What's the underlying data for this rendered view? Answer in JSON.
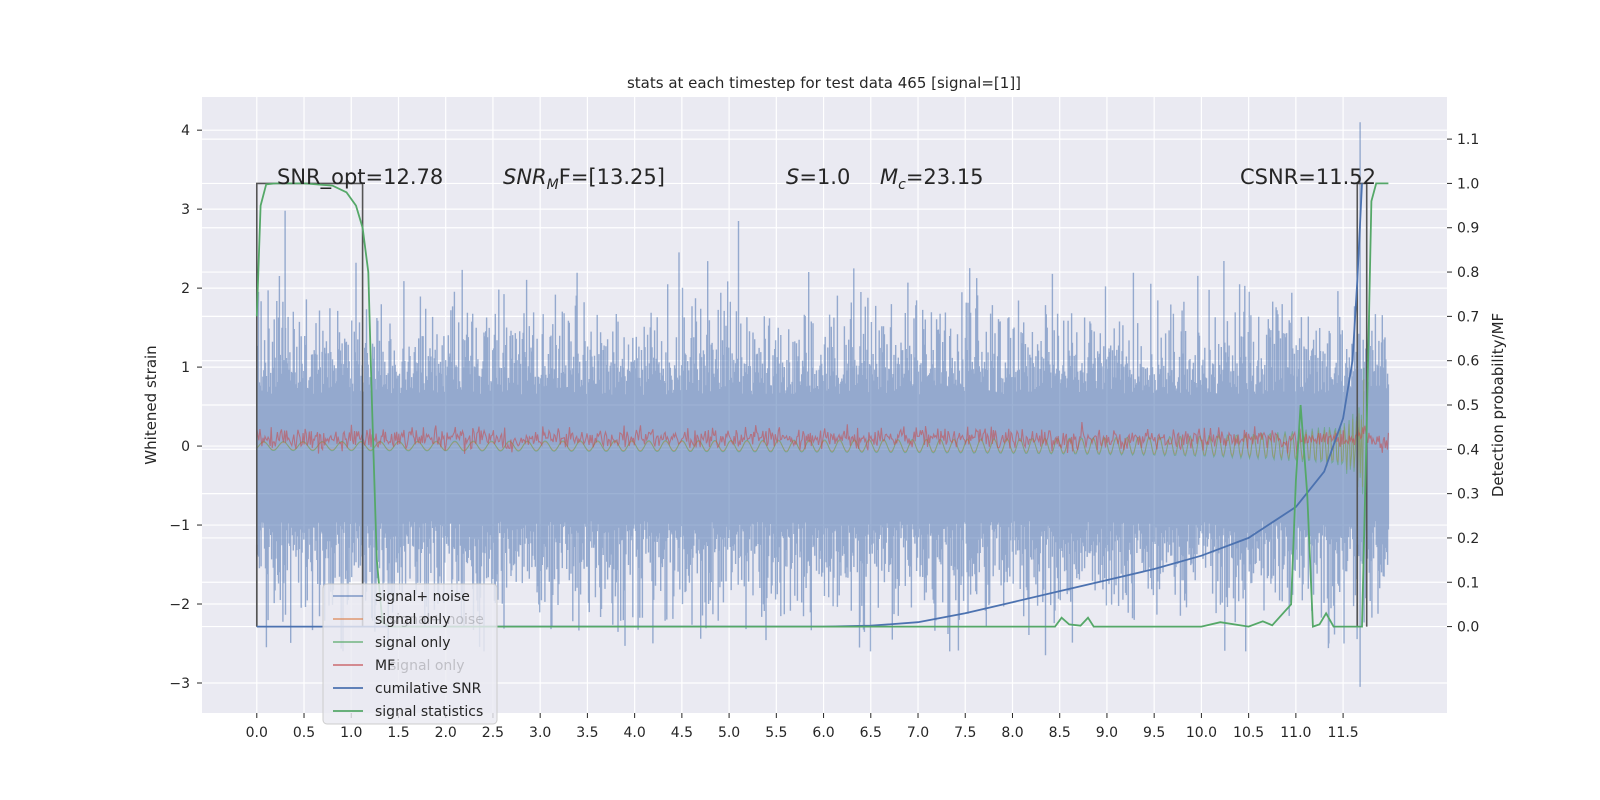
{
  "chart_data": {
    "type": "line",
    "title": "stats at each timestep for test data 465 [signal=[1]]",
    "xlabel": "",
    "ylabel": "Whitened strain",
    "y2label": "Detection probability/MF",
    "xlim": [
      -0.58,
      12.6
    ],
    "ylim": [
      -3.38,
      4.42
    ],
    "y2lim": [
      -0.195,
      1.195
    ],
    "grid": true,
    "x_ticks": [
      0.0,
      0.5,
      1.0,
      1.5,
      2.0,
      2.5,
      3.0,
      3.5,
      4.0,
      4.5,
      5.0,
      5.5,
      6.0,
      6.5,
      7.0,
      7.5,
      8.0,
      8.5,
      9.0,
      9.5,
      10.0,
      10.5,
      11.0,
      11.5
    ],
    "x_tick_labels": [
      "0.0",
      "0.5",
      "1.0",
      "1.5",
      "2.0",
      "2.5",
      "3.0",
      "3.5",
      "4.0",
      "4.5",
      "5.0",
      "5.5",
      "6.0",
      "6.5",
      "7.0",
      "7.5",
      "8.0",
      "8.5",
      "9.0",
      "9.5",
      "10.0",
      "10.5",
      "11.0",
      "11.5"
    ],
    "y_ticks": [
      4,
      3,
      2,
      1,
      0,
      -1,
      -2,
      -3
    ],
    "y_tick_labels": [
      "4",
      "3",
      "2",
      "1",
      "0",
      "−1",
      "−2",
      "−3"
    ],
    "y2_ticks": [
      1.1,
      1.0,
      0.9,
      0.8,
      0.7,
      0.6,
      0.5,
      0.4,
      0.3,
      0.2,
      0.1,
      0.0
    ],
    "y2_tick_labels": [
      "1.1",
      "1.0",
      "0.9",
      "0.8",
      "0.7",
      "0.6",
      "0.5",
      "0.4",
      "0.3",
      "0.2",
      "0.1",
      "0.0"
    ],
    "annotations": {
      "snr_opt": "SNR_opt=12.78",
      "snr_mf_sym": "SNR",
      "snr_mf_sub": "M",
      "snr_mf_rest": "F=[13.25]",
      "s_sym": "S",
      "s_val": "=1.0",
      "mc_sym": "M",
      "mc_sub": "c",
      "mc_val": "=23.15",
      "csnr": "CSNR=11.52"
    },
    "noise_band": {
      "t_start": 0.0,
      "t_end": 11.98,
      "typical_upper": 1.5,
      "typical_lower": -1.8,
      "max_peak": 4.1,
      "min_peak": -3.05,
      "peak_time": 11.68
    },
    "mf_band": {
      "t_start": 0.0,
      "t_end": 11.98,
      "level": 0.1,
      "amplitude": 0.12
    },
    "signal_chirp": {
      "t_start": 0.0,
      "t_end": 11.72,
      "max_amplitude": 1.0
    },
    "detection_windows": [
      [
        0.0,
        1.12
      ],
      [
        11.65,
        11.75
      ]
    ],
    "series": [
      {
        "name": "signal+ noise",
        "color": "#4c72b0",
        "axis": "left",
        "x": [
          0.0,
          11.98
        ]
      },
      {
        "name": "signal only",
        "color": "#dd8452",
        "axis": "left",
        "x": [
          0.0,
          11.72
        ]
      },
      {
        "name": "signal only",
        "color": "#55a868",
        "axis": "left",
        "x": [
          0.0,
          11.72
        ]
      },
      {
        "name": "MF",
        "color": "#c44e52",
        "axis": "right",
        "x": [
          0.0,
          11.98
        ]
      },
      {
        "name": "cumilative SNR",
        "color": "#4c72b0",
        "axis": "right",
        "x": [
          0.0,
          6.0,
          6.5,
          7.0,
          7.5,
          8.0,
          8.5,
          9.0,
          9.5,
          10.0,
          10.5,
          11.0,
          11.3,
          11.5,
          11.6,
          11.65,
          11.7
        ],
        "y": [
          0.0,
          0.0,
          0.002,
          0.01,
          0.03,
          0.055,
          0.08,
          0.105,
          0.13,
          0.16,
          0.2,
          0.27,
          0.35,
          0.47,
          0.6,
          0.78,
          1.0
        ]
      },
      {
        "name": "signal statistics",
        "color": "#55a868",
        "axis": "right",
        "x": [
          0.0,
          0.04,
          0.1,
          0.2,
          0.5,
          0.8,
          0.95,
          1.05,
          1.12,
          1.18,
          1.22,
          1.27,
          1.33,
          1.4,
          8.45,
          8.52,
          8.6,
          8.72,
          8.8,
          8.86,
          8.95,
          10.0,
          10.2,
          10.5,
          10.65,
          10.75,
          10.95,
          11.0,
          11.05,
          11.12,
          11.18,
          11.25,
          11.32,
          11.4,
          11.5,
          11.6,
          11.7,
          11.75,
          11.8,
          11.85,
          11.98
        ],
        "y": [
          0.7,
          0.95,
          0.998,
          1.0,
          1.0,
          0.995,
          0.98,
          0.95,
          0.9,
          0.8,
          0.5,
          0.15,
          0.01,
          0.0,
          0.0,
          0.02,
          0.005,
          0.002,
          0.02,
          0.0,
          0.0,
          0.0,
          0.01,
          0.0,
          0.012,
          0.003,
          0.05,
          0.33,
          0.5,
          0.3,
          0.0,
          0.005,
          0.03,
          0.0,
          0.0,
          0.0,
          0.0,
          0.45,
          0.96,
          1.0,
          1.0
        ]
      }
    ],
    "legend": {
      "placement": "lower-left",
      "entries": [
        {
          "label": "signal+ noise",
          "color": "#4c72b0",
          "alpha": 0.6
        },
        {
          "label": "signal only",
          "color": "#dd8452",
          "alpha": 0.7
        },
        {
          "label": "signal only",
          "color": "#55a868",
          "alpha": 0.7
        },
        {
          "label": "MF",
          "color": "#c44e52",
          "alpha": 0.7
        },
        {
          "label": "cumilative SNR",
          "color": "#4c72b0",
          "alpha": 1.0
        },
        {
          "label": "signal statistics",
          "color": "#55a868",
          "alpha": 1.0
        }
      ],
      "overlapped_labels": [
        "signal+ noise",
        "signal only"
      ]
    },
    "colors": {
      "background": "#eaeaf2",
      "grid": "#ffffff",
      "noise": "#4c72b0",
      "signal_only_a": "#dd8452",
      "signal_only_b": "#55a868",
      "mf": "#c44e52",
      "cumulative": "#4c72b0",
      "statistics": "#55a868",
      "window": "#555555"
    }
  }
}
